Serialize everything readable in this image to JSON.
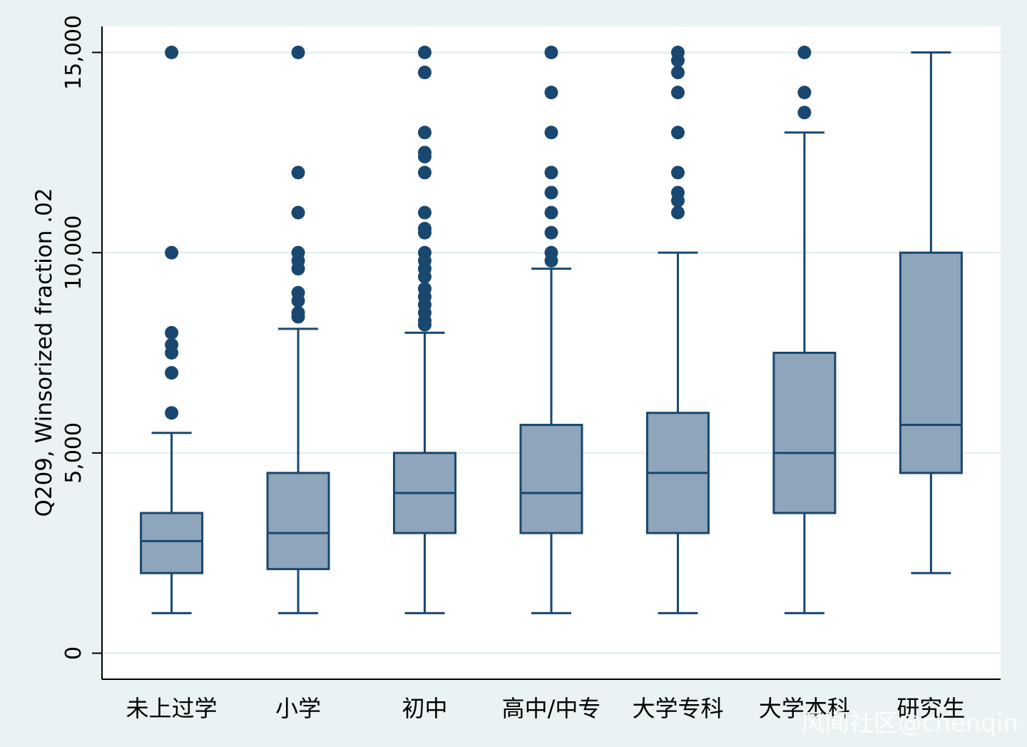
{
  "chart_data": {
    "type": "box",
    "ylabel": "Q209, Winsorized fraction .02",
    "xlabel": "",
    "ylim": [
      -650,
      15650
    ],
    "yticks": [
      0,
      5000,
      10000,
      15000
    ],
    "ytick_labels": [
      "0",
      "5,000",
      "10,000",
      "15,000"
    ],
    "grid": "horizontal",
    "categories": [
      "未上过学",
      "小学",
      "初中",
      "高中/中专",
      "大学专科",
      "大学本科",
      "研究生"
    ],
    "boxes": [
      {
        "whisker_low": 1000,
        "q1": 2000,
        "median": 2800,
        "q3": 3500,
        "whisker_high": 5500,
        "outliers": [
          6000,
          7000,
          7500,
          7700,
          8000,
          10000,
          15000
        ]
      },
      {
        "whisker_low": 1000,
        "q1": 2100,
        "median": 3000,
        "q3": 4500,
        "whisker_high": 8100,
        "outliers": [
          8400,
          8500,
          8800,
          9000,
          9600,
          9800,
          10000,
          11000,
          12000,
          15000
        ]
      },
      {
        "whisker_low": 1000,
        "q1": 3000,
        "median": 4000,
        "q3": 5000,
        "whisker_high": 8000,
        "outliers": [
          8200,
          8300,
          8500,
          8700,
          8900,
          9100,
          9400,
          9600,
          9800,
          10000,
          10500,
          10600,
          11000,
          12000,
          12400,
          12500,
          13000,
          14500,
          15000
        ]
      },
      {
        "whisker_low": 1000,
        "q1": 3000,
        "median": 4000,
        "q3": 5700,
        "whisker_high": 9600,
        "outliers": [
          9800,
          10000,
          10500,
          11000,
          11500,
          12000,
          13000,
          14000,
          15000
        ]
      },
      {
        "whisker_low": 1000,
        "q1": 3000,
        "median": 4500,
        "q3": 6000,
        "whisker_high": 10000,
        "outliers": [
          11000,
          11300,
          11500,
          12000,
          13000,
          14000,
          14500,
          14800,
          15000
        ]
      },
      {
        "whisker_low": 1000,
        "q1": 3500,
        "median": 5000,
        "q3": 7500,
        "whisker_high": 13000,
        "outliers": [
          13500,
          14000,
          15000
        ]
      },
      {
        "whisker_low": 2000,
        "q1": 4500,
        "median": 5700,
        "q3": 10000,
        "whisker_high": 15000,
        "outliers": []
      }
    ]
  },
  "colors": {
    "background": "#eaf2f3",
    "plot_area": "#ffffff",
    "gridline": "#e4eef0",
    "box_fill": "#8ea5bb",
    "box_stroke": "#1a476f",
    "outlier": "#1a476f"
  },
  "watermark": "风闻社区@chenqin"
}
